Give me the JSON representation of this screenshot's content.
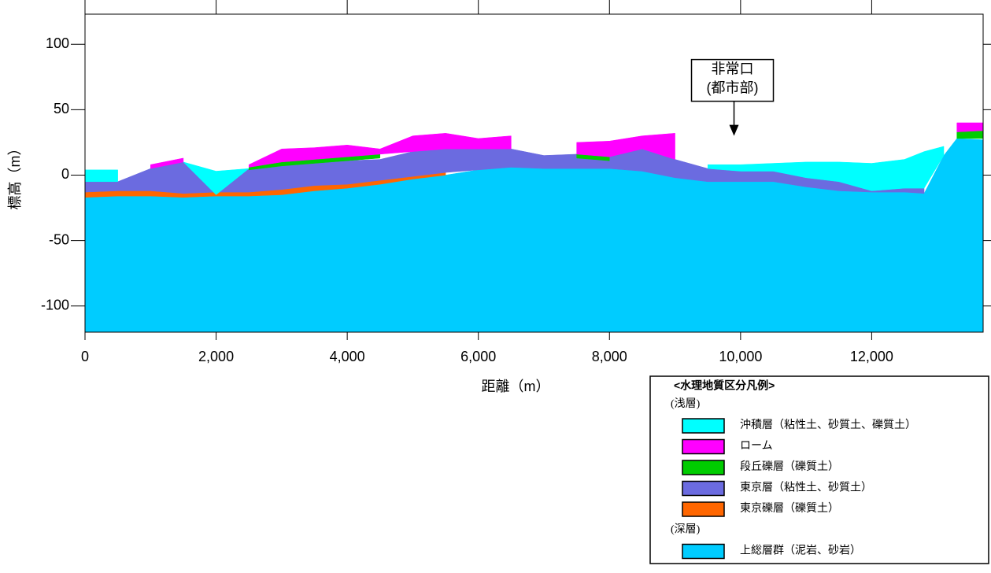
{
  "chart_data": {
    "type": "section",
    "xlabel": "距離（m）",
    "ylabel": "標高（m）",
    "xlim": [
      0,
      13700
    ],
    "ylim": [
      -120,
      123
    ],
    "xticks": [
      0,
      {
        "value": 2000,
        "label": "2,000"
      },
      {
        "value": 4000,
        "label": "4,000"
      },
      {
        "value": 6000,
        "label": "6,000"
      },
      {
        "value": 8000,
        "label": "8,000"
      },
      {
        "value": 10000,
        "label": "10,000"
      },
      {
        "value": 12000,
        "label": "12,000"
      }
    ],
    "yticks": [
      100,
      50,
      0,
      -50,
      -100
    ],
    "x": [
      0,
      500,
      1000,
      1500,
      2000,
      2500,
      3000,
      3500,
      4000,
      4500,
      5000,
      5500,
      6000,
      6500,
      7000,
      7500,
      8000,
      8500,
      9000,
      9500,
      10000,
      10500,
      11000,
      11500,
      12000,
      12500,
      12800,
      13100,
      13300,
      13700
    ],
    "annotation": {
      "lines": [
        "非常口",
        "(都市部)"
      ],
      "x": 9900,
      "y": 30
    },
    "legend_title": "<水理地質区分凡例>",
    "series": [
      {
        "name": "沖積層（粘性土、砂質土、礫質土）",
        "group": "(浅層)",
        "color": "#00ffff",
        "values": [
          4,
          4,
          null,
          10,
          3,
          5,
          null,
          null,
          null,
          null,
          null,
          null,
          null,
          null,
          null,
          null,
          null,
          null,
          null,
          8,
          8,
          9,
          10,
          10,
          9,
          12,
          18,
          22,
          null,
          null
        ],
        "bottom": [
          -5,
          -5,
          null,
          10,
          -15,
          5,
          null,
          null,
          null,
          null,
          null,
          null,
          null,
          null,
          null,
          null,
          null,
          null,
          null,
          5,
          3,
          3,
          -2,
          -5,
          -12,
          -10,
          -10,
          15,
          null,
          null
        ]
      },
      {
        "name": "ローム",
        "group": "(浅層)",
        "color": "#ff00ff",
        "values": [
          null,
          null,
          8,
          13,
          null,
          8,
          20,
          21,
          23,
          20,
          30,
          32,
          28,
          30,
          null,
          25,
          26,
          30,
          32,
          null,
          null,
          null,
          null,
          null,
          null,
          null,
          null,
          null,
          40,
          40
        ],
        "bottom": [
          null,
          null,
          5,
          10,
          null,
          6,
          10,
          12,
          14,
          16,
          18,
          20,
          20,
          20,
          null,
          16,
          14,
          20,
          12,
          null,
          null,
          null,
          null,
          null,
          null,
          null,
          null,
          null,
          33,
          34
        ]
      },
      {
        "name": "段丘礫層（礫質土）",
        "group": "(浅層)",
        "color": "#00cc00",
        "values": [
          null,
          null,
          null,
          null,
          null,
          6,
          10,
          12,
          14,
          16,
          null,
          null,
          null,
          null,
          null,
          16,
          14,
          null,
          null,
          null,
          null,
          null,
          null,
          null,
          null,
          null,
          null,
          null,
          33,
          34
        ],
        "bottom": [
          null,
          null,
          null,
          null,
          null,
          4,
          7,
          9,
          11,
          13,
          null,
          null,
          null,
          null,
          null,
          13,
          11,
          null,
          null,
          null,
          null,
          null,
          null,
          null,
          null,
          null,
          null,
          null,
          28,
          28
        ]
      },
      {
        "name": "東京層（粘性土、砂質土）",
        "group": "(浅層)",
        "color": "#6b6be0",
        "values": [
          -5,
          -5,
          5,
          10,
          -6,
          5,
          8,
          10,
          11,
          12,
          18,
          20,
          20,
          20,
          15,
          16,
          15,
          20,
          12,
          5,
          3,
          3,
          -2,
          -5,
          -12,
          -10,
          -10,
          null,
          null,
          null
        ],
        "bottom": [
          -13,
          -12,
          -12,
          -14,
          -13,
          -13,
          -11,
          -8,
          -7,
          -4,
          -1,
          2,
          4,
          6,
          5,
          5,
          5,
          3,
          -2,
          -5,
          -5,
          -5,
          -9,
          -12,
          -13,
          -13,
          -14,
          null,
          null,
          null
        ]
      },
      {
        "name": "東京礫層（礫質土）",
        "group": "(浅層)",
        "color": "#ff6600",
        "values": [
          -13,
          -12,
          -12,
          -14,
          -13,
          -13,
          -11,
          -8,
          -7,
          -4,
          -1,
          2,
          null,
          null,
          null,
          null,
          null,
          null,
          null,
          null,
          null,
          null,
          null,
          null,
          null,
          null,
          null,
          null,
          null,
          null
        ],
        "bottom": [
          -17,
          -16,
          -16,
          -17,
          -16,
          -16,
          -15,
          -12,
          -10,
          -7,
          -3,
          0,
          null,
          null,
          null,
          null,
          null,
          null,
          null,
          null,
          null,
          null,
          null,
          null,
          null,
          null,
          null,
          null,
          null,
          null
        ]
      },
      {
        "name": "上総層群（泥岩、砂岩）",
        "group": "(深層)",
        "color": "#00ccff",
        "values": [
          -17,
          -16,
          -16,
          -17,
          -16,
          -16,
          -15,
          -12,
          -10,
          -7,
          -3,
          0,
          4,
          6,
          5,
          5,
          5,
          3,
          -2,
          -5,
          -5,
          -5,
          -9,
          -12,
          -13,
          -13,
          -14,
          15,
          28,
          27
        ]
      }
    ]
  }
}
